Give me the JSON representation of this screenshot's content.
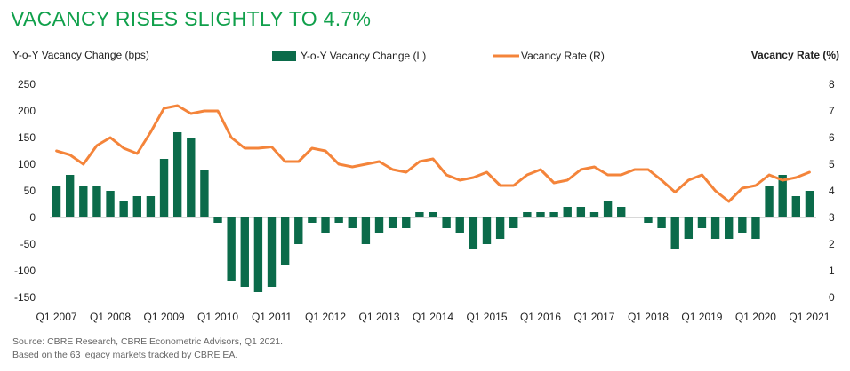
{
  "title": "VACANCY RISES SLIGHTLY TO 4.7%",
  "source_line1": "Source: CBRE Research, CBRE Econometric Advisors, Q1 2021.",
  "source_line2": "Based on the 63 legacy markets tracked by CBRE EA.",
  "colors": {
    "title": "#10A04B",
    "bar": "#0B6B4A",
    "line": "#F4843A"
  },
  "chart_data": {
    "type": "bar+line",
    "ylabel_left": "Y-o-Y Vacancy Change (bps)",
    "ylabel_right": "Vacancy Rate (%)",
    "ylim_left": [
      -150,
      250
    ],
    "ylim_right": [
      0,
      8
    ],
    "yticks_left": [
      "250",
      "200",
      "150",
      "100",
      "50",
      "0",
      "-50",
      "-100",
      "-150"
    ],
    "yticks_right": [
      "8",
      "7",
      "6",
      "5",
      "4",
      "3",
      "2",
      "1",
      "0"
    ],
    "xtick_labels": [
      "Q1 2007",
      "Q1 2008",
      "Q1 2009",
      "Q1 2010",
      "Q1 2011",
      "Q1 2012",
      "Q1 2013",
      "Q1 2014",
      "Q1 2015",
      "Q1 2016",
      "Q1 2017",
      "Q1 2018",
      "Q1 2019",
      "Q1 2020",
      "Q1 2021"
    ],
    "legend": [
      {
        "label": "Y-o-Y Vacancy Change (L)",
        "kind": "bar"
      },
      {
        "label": "Vacancy Rate (R)",
        "kind": "line"
      }
    ],
    "quarters": [
      "Q1 2007",
      "Q2 2007",
      "Q3 2007",
      "Q4 2007",
      "Q1 2008",
      "Q2 2008",
      "Q3 2008",
      "Q4 2008",
      "Q1 2009",
      "Q2 2009",
      "Q3 2009",
      "Q4 2009",
      "Q1 2010",
      "Q2 2010",
      "Q3 2010",
      "Q4 2010",
      "Q1 2011",
      "Q2 2011",
      "Q3 2011",
      "Q4 2011",
      "Q1 2012",
      "Q2 2012",
      "Q3 2012",
      "Q4 2012",
      "Q1 2013",
      "Q2 2013",
      "Q3 2013",
      "Q4 2013",
      "Q1 2014",
      "Q2 2014",
      "Q3 2014",
      "Q4 2014",
      "Q1 2015",
      "Q2 2015",
      "Q3 2015",
      "Q4 2015",
      "Q1 2016",
      "Q2 2016",
      "Q3 2016",
      "Q4 2016",
      "Q1 2017",
      "Q2 2017",
      "Q3 2017",
      "Q4 2017",
      "Q1 2018",
      "Q2 2018",
      "Q3 2018",
      "Q4 2018",
      "Q1 2019",
      "Q2 2019",
      "Q3 2019",
      "Q4 2019",
      "Q1 2020",
      "Q2 2020",
      "Q3 2020",
      "Q4 2020",
      "Q1 2021"
    ],
    "series": [
      {
        "name": "Y-o-Y Vacancy Change (L)",
        "axis": "left",
        "values": [
          60,
          80,
          60,
          60,
          50,
          30,
          40,
          40,
          110,
          160,
          150,
          90,
          -10,
          -120,
          -130,
          -140,
          -130,
          -90,
          -50,
          -10,
          -30,
          -10,
          -20,
          -50,
          -30,
          -20,
          -20,
          10,
          10,
          -20,
          -30,
          -60,
          -50,
          -40,
          -20,
          10,
          10,
          10,
          20,
          20,
          10,
          30,
          20,
          0,
          -10,
          -20,
          -60,
          -40,
          -20,
          -40,
          -40,
          -30,
          -40,
          60,
          80,
          40,
          50
        ]
      },
      {
        "name": "Vacancy Rate (R)",
        "axis": "right",
        "values": [
          5.5,
          5.35,
          5.0,
          5.7,
          6.0,
          5.6,
          5.4,
          6.2,
          7.1,
          7.2,
          6.9,
          7.0,
          7.0,
          6.0,
          5.6,
          5.6,
          5.65,
          5.1,
          5.1,
          5.6,
          5.5,
          5.0,
          4.9,
          5.0,
          5.1,
          4.8,
          4.7,
          5.1,
          5.2,
          4.6,
          4.4,
          4.5,
          4.7,
          4.2,
          4.2,
          4.6,
          4.8,
          4.3,
          4.4,
          4.8,
          4.9,
          4.6,
          4.6,
          4.8,
          4.8,
          4.4,
          3.95,
          4.4,
          4.6,
          4.0,
          3.6,
          4.1,
          4.2,
          4.6,
          4.4,
          4.5,
          4.7
        ]
      }
    ]
  }
}
